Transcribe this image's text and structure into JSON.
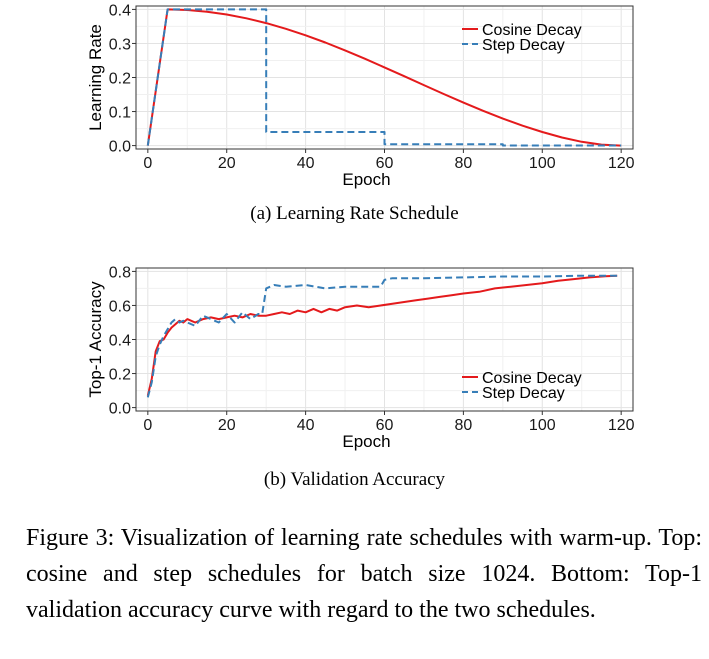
{
  "chart_data": [
    {
      "type": "line",
      "title": "",
      "xlabel": "Epoch",
      "ylabel": "Learning Rate",
      "xlim": [
        -3,
        123
      ],
      "ylim": [
        -0.01,
        0.41
      ],
      "xticks": [
        0,
        20,
        40,
        60,
        80,
        100,
        120
      ],
      "yticks": [
        0.0,
        0.1,
        0.2,
        0.3,
        0.4
      ],
      "ytick_labels": [
        "0.0",
        "0.1",
        "0.2",
        "0.3",
        "0.4"
      ],
      "grid": true,
      "legend_position": "top-right",
      "series": [
        {
          "name": "Cosine Decay",
          "color": "#e41a1c",
          "style": "solid",
          "x": [
            0,
            5,
            10,
            15,
            20,
            25,
            30,
            35,
            40,
            45,
            50,
            55,
            60,
            65,
            70,
            75,
            80,
            85,
            90,
            95,
            100,
            105,
            110,
            115,
            120
          ],
          "y": [
            0.0,
            0.4,
            0.3983,
            0.3933,
            0.3851,
            0.3739,
            0.3598,
            0.3431,
            0.3239,
            0.3027,
            0.2797,
            0.2553,
            0.2298,
            0.2038,
            0.1776,
            0.1516,
            0.1263,
            0.1021,
            0.0794,
            0.0585,
            0.0399,
            0.0239,
            0.011,
            0.0029,
            0.0
          ]
        },
        {
          "name": "Step Decay",
          "color": "#377eb8",
          "style": "dashed",
          "x": [
            0,
            5,
            30,
            30,
            60,
            60,
            90,
            90,
            120
          ],
          "y": [
            0.0,
            0.4,
            0.4,
            0.04,
            0.04,
            0.004,
            0.004,
            0.0004,
            0.0004
          ]
        }
      ]
    },
    {
      "type": "line",
      "title": "",
      "xlabel": "Epoch",
      "ylabel": "Top-1 Accuracy",
      "xlim": [
        -3,
        123
      ],
      "ylim": [
        -0.02,
        0.82
      ],
      "xticks": [
        0,
        20,
        40,
        60,
        80,
        100,
        120
      ],
      "yticks": [
        0.0,
        0.2,
        0.4,
        0.6,
        0.8
      ],
      "ytick_labels": [
        "0.0",
        "0.2",
        "0.4",
        "0.6",
        "0.8"
      ],
      "grid": true,
      "legend_position": "bottom-right",
      "series": [
        {
          "name": "Cosine Decay",
          "color": "#e41a1c",
          "style": "solid",
          "x": [
            0,
            1,
            2,
            3,
            4,
            5,
            6,
            7,
            8,
            9,
            10,
            12,
            14,
            16,
            18,
            20,
            22,
            24,
            26,
            28,
            30,
            32,
            34,
            36,
            38,
            40,
            42,
            44,
            46,
            48,
            50,
            53,
            56,
            59,
            62,
            65,
            68,
            71,
            74,
            77,
            80,
            84,
            88,
            92,
            96,
            100,
            104,
            108,
            112,
            116,
            119
          ],
          "y": [
            0.07,
            0.17,
            0.33,
            0.39,
            0.4,
            0.44,
            0.47,
            0.49,
            0.51,
            0.5,
            0.52,
            0.5,
            0.52,
            0.53,
            0.52,
            0.53,
            0.54,
            0.53,
            0.55,
            0.54,
            0.54,
            0.55,
            0.56,
            0.55,
            0.57,
            0.56,
            0.58,
            0.56,
            0.58,
            0.57,
            0.59,
            0.6,
            0.59,
            0.6,
            0.61,
            0.62,
            0.63,
            0.64,
            0.65,
            0.66,
            0.67,
            0.68,
            0.7,
            0.71,
            0.72,
            0.73,
            0.745,
            0.755,
            0.765,
            0.772,
            0.775
          ]
        },
        {
          "name": "Step Decay",
          "color": "#377eb8",
          "style": "dashed",
          "x": [
            0,
            1,
            2,
            3,
            4,
            5,
            6,
            7,
            8,
            9,
            10,
            12,
            14,
            16,
            18,
            20,
            22,
            24,
            26,
            28,
            29,
            30,
            32,
            35,
            40,
            45,
            50,
            55,
            59,
            60,
            62,
            70,
            80,
            90,
            100,
            110,
            119
          ],
          "y": [
            0.06,
            0.15,
            0.3,
            0.37,
            0.42,
            0.46,
            0.5,
            0.52,
            0.5,
            0.51,
            0.5,
            0.48,
            0.54,
            0.52,
            0.5,
            0.55,
            0.5,
            0.56,
            0.52,
            0.55,
            0.55,
            0.7,
            0.72,
            0.71,
            0.72,
            0.7,
            0.71,
            0.71,
            0.71,
            0.75,
            0.76,
            0.76,
            0.765,
            0.77,
            0.77,
            0.775,
            0.775
          ]
        }
      ]
    }
  ],
  "captions": {
    "sub_a": "(a) Learning Rate Schedule",
    "sub_b": "(b) Validation Accuracy",
    "figure_label": "Figure 3:",
    "figure_text": "Visualization of learning rate schedules with warm-up. Top: cosine and step schedules for batch size 1024. Bottom: Top-1 validation accuracy curve with regard to the two schedules."
  }
}
